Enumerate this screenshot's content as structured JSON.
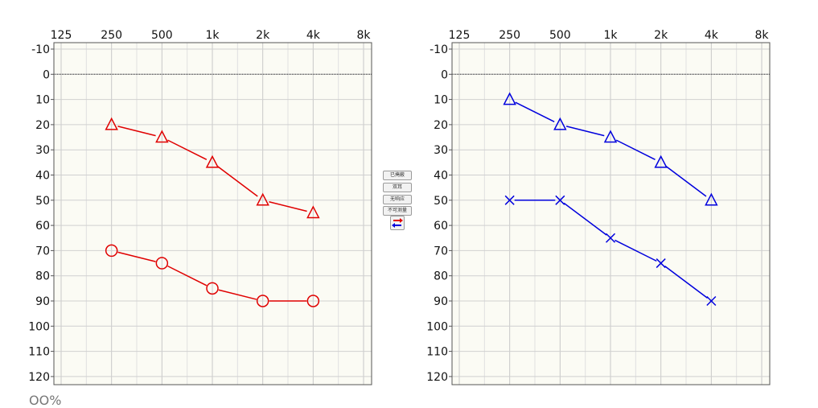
{
  "controls": {
    "buttons": [
      "已掩蔽",
      "双耳",
      "无响应",
      "不可测量"
    ],
    "swap_icon": "swap-arrows-icon"
  },
  "colors": {
    "right_ear": "#e00000",
    "left_ear": "#0000dd"
  },
  "bottom_fragment": "OO%",
  "chart_data": [
    {
      "type": "line",
      "x_categories": [
        "125",
        "250",
        "500",
        "1k",
        "2k",
        "4k",
        "8k"
      ],
      "y_ticks": [
        -10,
        0,
        10,
        20,
        30,
        40,
        50,
        60,
        70,
        80,
        90,
        100,
        110,
        120
      ],
      "ylim": [
        -10,
        120
      ],
      "y_inverted": true,
      "grid": true,
      "reference_line_y": 0,
      "series": [
        {
          "marker": "triangle",
          "color": "#e00000",
          "points": [
            [
              "250",
              20
            ],
            [
              "500",
              25
            ],
            [
              "1k",
              35
            ],
            [
              "2k",
              50
            ],
            [
              "4k",
              55
            ]
          ]
        },
        {
          "marker": "circle",
          "color": "#e00000",
          "points": [
            [
              "250",
              70
            ],
            [
              "500",
              75
            ],
            [
              "1k",
              85
            ],
            [
              "2k",
              90
            ],
            [
              "4k",
              90
            ]
          ]
        }
      ]
    },
    {
      "type": "line",
      "x_categories": [
        "125",
        "250",
        "500",
        "1k",
        "2k",
        "4k",
        "8k"
      ],
      "y_ticks": [
        -10,
        0,
        10,
        20,
        30,
        40,
        50,
        60,
        70,
        80,
        90,
        100,
        110,
        120
      ],
      "ylim": [
        -10,
        120
      ],
      "y_inverted": true,
      "grid": true,
      "reference_line_y": 0,
      "series": [
        {
          "marker": "triangle",
          "color": "#0000dd",
          "points": [
            [
              "250",
              10
            ],
            [
              "500",
              20
            ],
            [
              "1k",
              25
            ],
            [
              "2k",
              35
            ],
            [
              "4k",
              50
            ]
          ]
        },
        {
          "marker": "cross",
          "color": "#0000dd",
          "points": [
            [
              "250",
              50
            ],
            [
              "500",
              50
            ],
            [
              "1k",
              65
            ],
            [
              "2k",
              75
            ],
            [
              "4k",
              90
            ]
          ]
        }
      ]
    }
  ]
}
